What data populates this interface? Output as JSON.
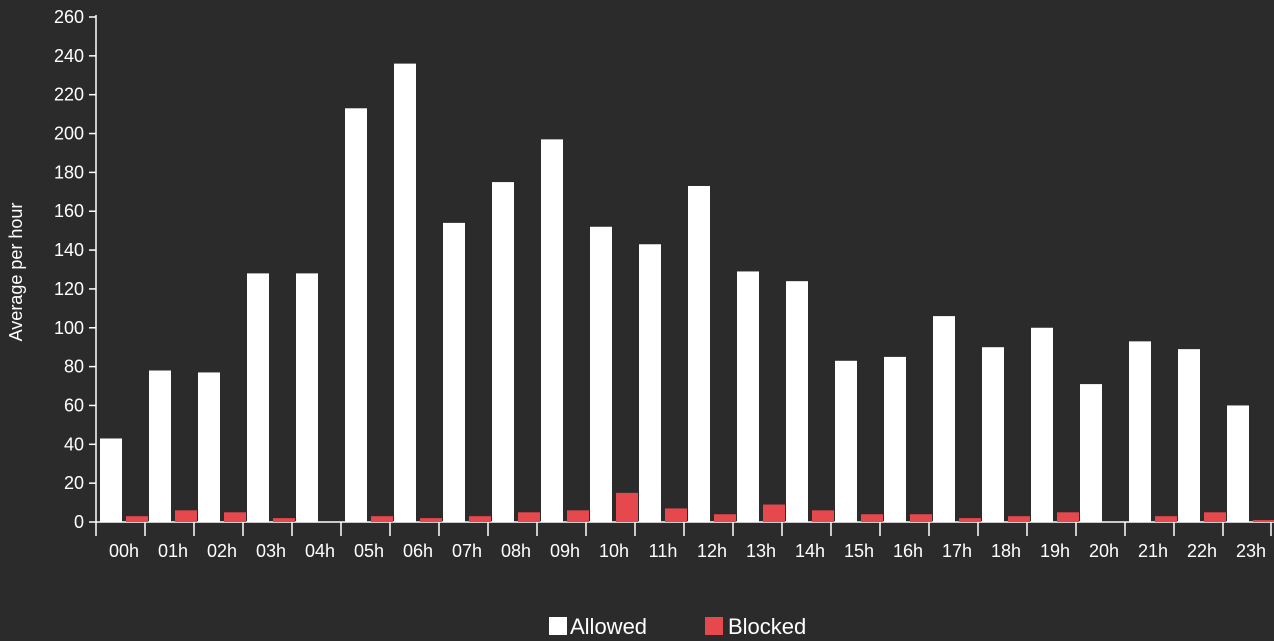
{
  "theme": {
    "background": "#2b2b2b",
    "allowed_color": "#ffffff",
    "blocked_color": "#e5484d",
    "axis_color": "#ffffff"
  },
  "chart_data": {
    "type": "bar",
    "ylabel": "Average per hour",
    "xlabel": "",
    "ylim": [
      0,
      260
    ],
    "yticks": [
      0,
      20,
      40,
      60,
      80,
      100,
      120,
      140,
      160,
      180,
      200,
      220,
      240,
      260
    ],
    "grid": false,
    "legend_position": "bottom-center",
    "categories": [
      "00h",
      "01h",
      "02h",
      "03h",
      "04h",
      "05h",
      "06h",
      "07h",
      "08h",
      "09h",
      "10h",
      "11h",
      "12h",
      "13h",
      "14h",
      "15h",
      "16h",
      "17h",
      "18h",
      "19h",
      "20h",
      "21h",
      "22h",
      "23h"
    ],
    "series": [
      {
        "name": "Allowed",
        "color": "#ffffff",
        "values": [
          43,
          78,
          77,
          128,
          128,
          213,
          236,
          154,
          175,
          197,
          152,
          143,
          173,
          129,
          124,
          83,
          85,
          106,
          90,
          100,
          71,
          93,
          89,
          60
        ]
      },
      {
        "name": "Blocked",
        "color": "#e5484d",
        "values": [
          3,
          6,
          5,
          2,
          0,
          3,
          2,
          3,
          5,
          6,
          15,
          7,
          4,
          9,
          6,
          4,
          4,
          2,
          3,
          5,
          0,
          3,
          5,
          1
        ]
      }
    ]
  }
}
